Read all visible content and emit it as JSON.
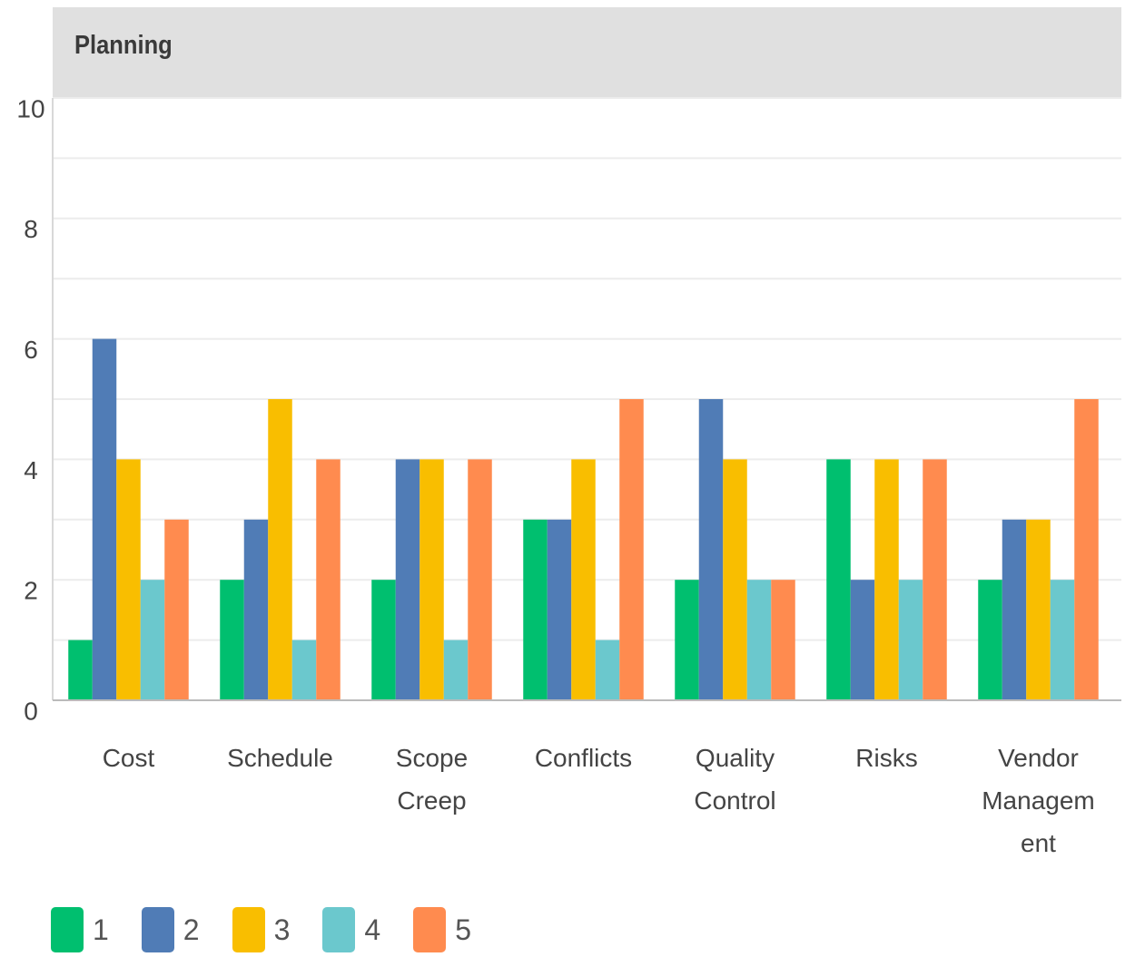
{
  "chart_data": {
    "type": "bar",
    "title": "Planning",
    "categories": [
      "Cost",
      "Schedule",
      "Scope Creep",
      "Conflicts",
      "Quality Control",
      "Risks",
      "Vendor Management"
    ],
    "series": [
      {
        "name": "1",
        "color": "#00bf6f",
        "values": [
          1,
          2,
          2,
          3,
          2,
          4,
          2
        ]
      },
      {
        "name": "2",
        "color": "#507cb6",
        "values": [
          6,
          3,
          4,
          3,
          5,
          2,
          3
        ]
      },
      {
        "name": "3",
        "color": "#f9be00",
        "values": [
          4,
          5,
          4,
          4,
          4,
          4,
          3
        ]
      },
      {
        "name": "4",
        "color": "#6bc8cd",
        "values": [
          2,
          1,
          1,
          1,
          2,
          2,
          2
        ]
      },
      {
        "name": "5",
        "color": "#ff8b4f",
        "values": [
          3,
          4,
          4,
          5,
          2,
          4,
          5
        ]
      }
    ],
    "ylim": [
      0,
      10
    ],
    "yticks": [
      0,
      2,
      4,
      6,
      8,
      10
    ],
    "grid": true,
    "legend": "bottom"
  }
}
